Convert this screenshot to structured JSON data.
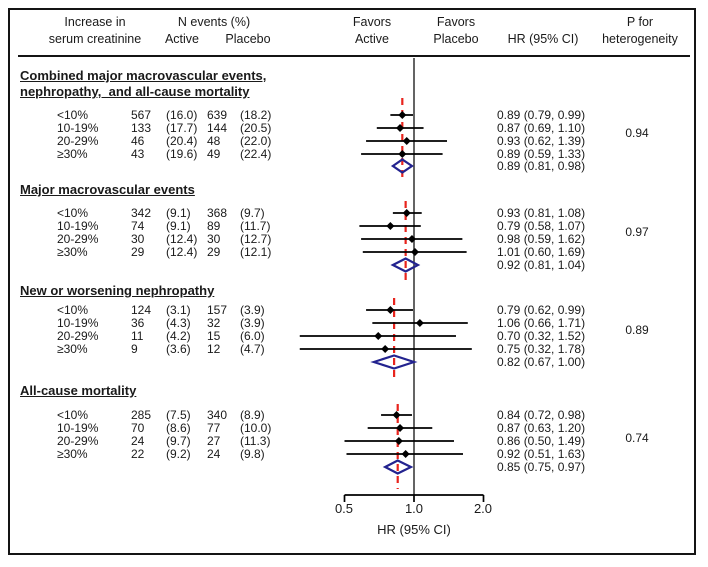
{
  "header": {
    "col1_line1": "Increase in",
    "col1_line2": "serum creatinine",
    "col2_title": "N events (%)",
    "col2_sub1": "Active",
    "col2_sub2": "Placebo",
    "col3_line1": "Favors",
    "col3_line2": "Active",
    "col4_line1": "Favors",
    "col4_line2": "Placebo",
    "col5": "HR (95% CI)",
    "col6_line1": "P for",
    "col6_line2": "heterogeneity"
  },
  "colors": {
    "text": "#1a1a1a",
    "border": "#141414",
    "reference_line": "#3d3d3d",
    "overall_line": "#e8241d",
    "diamond": "#23238f",
    "marker": "#000000",
    "axis": "#000000"
  },
  "chart_data": {
    "type": "forest",
    "x_scale": "log",
    "x_ticks": [
      0.5,
      1.0,
      2.0
    ],
    "x_tick_labels": [
      "0.5",
      "1.0",
      "2.0"
    ],
    "x_label": "HR (95% CI)",
    "reference_value": 1.0,
    "sections": [
      {
        "title_lines": [
          "Combined major macrovascular events,",
          "nephropathy,  and all-cause mortality"
        ],
        "p_heterogeneity": "0.94",
        "rows": [
          {
            "category": "<10%",
            "active_n": "567",
            "active_pct": "(16.0)",
            "placebo_n": "639",
            "placebo_pct": "(18.2)",
            "hr": 0.89,
            "ci": [
              0.79,
              0.99
            ],
            "hr_label": "0.89 (0.79, 0.99)"
          },
          {
            "category": "10-19%",
            "active_n": "133",
            "active_pct": "(17.7)",
            "placebo_n": "144",
            "placebo_pct": "(20.5)",
            "hr": 0.87,
            "ci": [
              0.69,
              1.1
            ],
            "hr_label": "0.87 (0.69, 1.10)"
          },
          {
            "category": "20-29%",
            "active_n": "46",
            "active_pct": "(20.4)",
            "placebo_n": "48",
            "placebo_pct": "(22.0)",
            "hr": 0.93,
            "ci": [
              0.62,
              1.39
            ],
            "hr_label": "0.93 (0.62, 1.39)"
          },
          {
            "category": "≥30%",
            "active_n": "43",
            "active_pct": "(19.6)",
            "placebo_n": "49",
            "placebo_pct": "(22.4)",
            "hr": 0.89,
            "ci": [
              0.59,
              1.33
            ],
            "hr_label": "0.89 (0.59, 1.33)"
          }
        ],
        "overall": {
          "hr": 0.89,
          "ci": [
            0.81,
            0.98
          ],
          "hr_label": "0.89 (0.81, 0.98)"
        }
      },
      {
        "title_lines": [
          "Major macrovascular events"
        ],
        "p_heterogeneity": "0.97",
        "rows": [
          {
            "category": "<10%",
            "active_n": "342",
            "active_pct": "(9.1)",
            "placebo_n": "368",
            "placebo_pct": "(9.7)",
            "hr": 0.93,
            "ci": [
              0.81,
              1.08
            ],
            "hr_label": "0.93 (0.81, 1.08)"
          },
          {
            "category": "10-19%",
            "active_n": "74",
            "active_pct": "(9.1)",
            "placebo_n": "89",
            "placebo_pct": "(11.7)",
            "hr": 0.79,
            "ci": [
              0.58,
              1.07
            ],
            "hr_label": "0.79 (0.58, 1.07)"
          },
          {
            "category": "20-29%",
            "active_n": "30",
            "active_pct": "(12.4)",
            "placebo_n": "30",
            "placebo_pct": "(12.7)",
            "hr": 0.98,
            "ci": [
              0.59,
              1.62
            ],
            "hr_label": "0.98 (0.59, 1.62)"
          },
          {
            "category": "≥30%",
            "active_n": "29",
            "active_pct": "(12.4)",
            "placebo_n": "29",
            "placebo_pct": "(12.1)",
            "hr": 1.01,
            "ci": [
              0.6,
              1.69
            ],
            "hr_label": "1.01 (0.60, 1.69)"
          }
        ],
        "overall": {
          "hr": 0.92,
          "ci": [
            0.81,
            1.04
          ],
          "hr_label": "0.92 (0.81, 1.04)"
        }
      },
      {
        "title_lines": [
          "New or worsening nephropathy"
        ],
        "p_heterogeneity": "0.89",
        "rows": [
          {
            "category": "<10%",
            "active_n": "124",
            "active_pct": "(3.1)",
            "placebo_n": "157",
            "placebo_pct": "(3.9)",
            "hr": 0.79,
            "ci": [
              0.62,
              0.99
            ],
            "hr_label": "0.79 (0.62, 0.99)"
          },
          {
            "category": "10-19%",
            "active_n": "36",
            "active_pct": "(4.3)",
            "placebo_n": "32",
            "placebo_pct": "(3.9)",
            "hr": 1.06,
            "ci": [
              0.66,
              1.71
            ],
            "hr_label": "1.06 (0.66, 1.71)"
          },
          {
            "category": "20-29%",
            "active_n": "11",
            "active_pct": "(4.2)",
            "placebo_n": "15",
            "placebo_pct": "(6.0)",
            "hr": 0.7,
            "ci": [
              0.32,
              1.52
            ],
            "hr_label": "0.70 (0.32, 1.52)"
          },
          {
            "category": "≥30%",
            "active_n": "9",
            "active_pct": "(3.6)",
            "placebo_n": "12",
            "placebo_pct": "(4.7)",
            "hr": 0.75,
            "ci": [
              0.32,
              1.78
            ],
            "hr_label": "0.75 (0.32, 1.78)"
          }
        ],
        "overall": {
          "hr": 0.82,
          "ci": [
            0.67,
            1.0
          ],
          "hr_label": "0.82 (0.67, 1.00)"
        }
      },
      {
        "title_lines": [
          "All-cause mortality"
        ],
        "p_heterogeneity": "0.74",
        "rows": [
          {
            "category": "<10%",
            "active_n": "285",
            "active_pct": "(7.5)",
            "placebo_n": "340",
            "placebo_pct": "(8.9)",
            "hr": 0.84,
            "ci": [
              0.72,
              0.98
            ],
            "hr_label": "0.84 (0.72, 0.98)"
          },
          {
            "category": "10-19%",
            "active_n": "70",
            "active_pct": "(8.6)",
            "placebo_n": "77",
            "placebo_pct": "(10.0)",
            "hr": 0.87,
            "ci": [
              0.63,
              1.2
            ],
            "hr_label": "0.87 (0.63, 1.20)"
          },
          {
            "category": "20-29%",
            "active_n": "24",
            "active_pct": "(9.7)",
            "placebo_n": "27",
            "placebo_pct": "(11.3)",
            "hr": 0.86,
            "ci": [
              0.5,
              1.49
            ],
            "hr_label": "0.86 (0.50, 1.49)"
          },
          {
            "category": "≥30%",
            "active_n": "22",
            "active_pct": "(9.2)",
            "placebo_n": "24",
            "placebo_pct": "(9.8)",
            "hr": 0.92,
            "ci": [
              0.51,
              1.63
            ],
            "hr_label": "0.92 (0.51, 1.63)"
          }
        ],
        "overall": {
          "hr": 0.85,
          "ci": [
            0.75,
            0.97
          ],
          "hr_label": "0.85 (0.75, 0.97)"
        }
      }
    ]
  }
}
